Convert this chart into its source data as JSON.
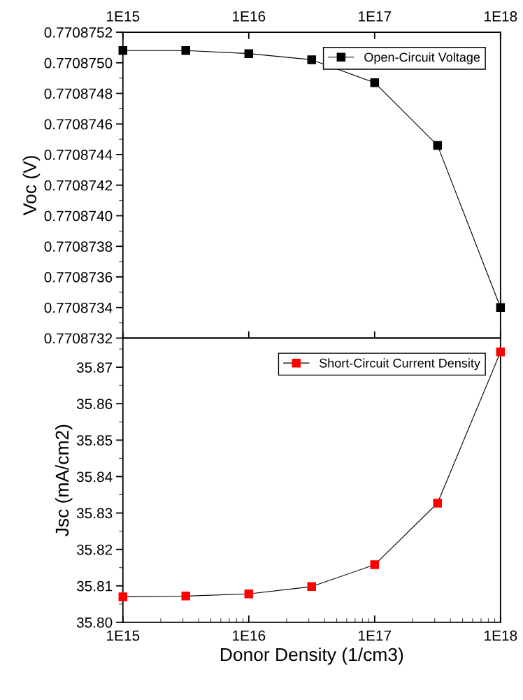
{
  "chart_data": [
    {
      "type": "line",
      "ylabel": "Voc (V)",
      "x": [
        1000000000000000.0,
        3160000000000000.0,
        1e+16,
        3.16e+16,
        1e+17,
        3.16e+17,
        1e+18
      ],
      "series": [
        {
          "name": "Open-Circuit Voltage",
          "color": "#000000",
          "values": [
            0.77087508,
            0.77087508,
            0.77087506,
            0.77087502,
            0.77087487,
            0.77087446,
            0.7708734
          ]
        }
      ],
      "log": "x",
      "xlim": [
        1000000000000000.0,
        1e+18
      ],
      "xticks": [
        {
          "value": 1000000000000000.0,
          "label": "1E15"
        },
        {
          "value": 1e+16,
          "label": "1E16"
        },
        {
          "value": 1e+17,
          "label": "1E17"
        },
        {
          "value": 1e+18,
          "label": "1E18"
        }
      ],
      "ylim": [
        0.7708732,
        0.7708752
      ],
      "yticks": [
        0.7708732,
        0.7708734,
        0.7708736,
        0.7708738,
        {
          "value": 0.770874,
          "label": "0.7708740"
        },
        0.7708742,
        0.7708744,
        0.7708746,
        0.7708748,
        {
          "value": 0.770875,
          "label": "0.7708750"
        },
        0.7708752
      ],
      "marker": "square",
      "line_style": "solid",
      "legend": "top right",
      "grid": false
    },
    {
      "type": "line",
      "xlabel": "Donor Density (1/cm3)",
      "ylabel": "Jsc (mA/cm2)",
      "x": [
        1000000000000000.0,
        3160000000000000.0,
        1e+16,
        3.16e+16,
        1e+17,
        3.16e+17,
        1e+18
      ],
      "series": [
        {
          "name": "Short-Circuit Current Density",
          "color": "#ff0000",
          "values": [
            35.807,
            35.8072,
            35.8078,
            35.8098,
            35.8158,
            35.8327,
            35.8742
          ]
        }
      ],
      "log": "x",
      "xlim": [
        1000000000000000.0,
        1e+18
      ],
      "xticks": [
        {
          "value": 1000000000000000.0,
          "label": "1E15"
        },
        {
          "value": 1e+16,
          "label": "1E16"
        },
        {
          "value": 1e+17,
          "label": "1E17"
        },
        {
          "value": 1e+18,
          "label": "1E18"
        }
      ],
      "ylim": [
        35.8,
        35.878
      ],
      "yticks": [
        {
          "value": 35.8,
          "label": "35.80"
        },
        35.81,
        35.82,
        35.83,
        35.84,
        35.85,
        35.86,
        35.87
      ],
      "marker": "square",
      "line_style": "solid",
      "legend": "top right",
      "grid": false
    }
  ]
}
